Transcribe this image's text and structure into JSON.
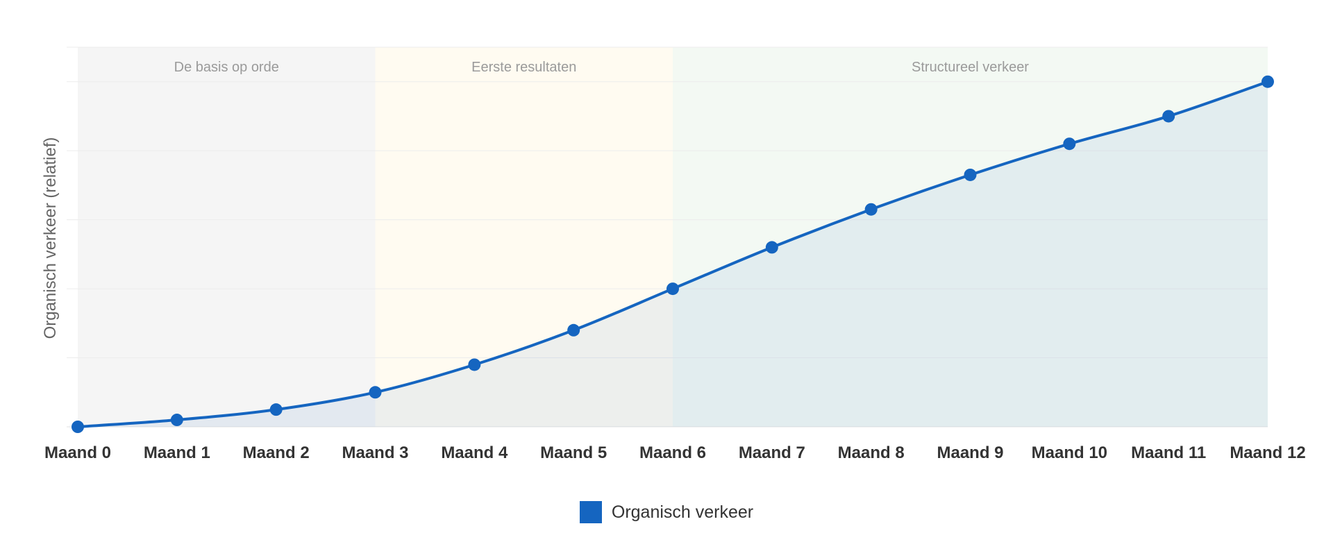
{
  "chart_data": {
    "type": "area",
    "title": "",
    "xlabel": "",
    "ylabel": "Organisch verkeer (relatief)",
    "categories": [
      "Maand 0",
      "Maand 1",
      "Maand 2",
      "Maand 3",
      "Maand 4",
      "Maand 5",
      "Maand 6",
      "Maand 7",
      "Maand 8",
      "Maand 9",
      "Maand 10",
      "Maand 11",
      "Maand 12"
    ],
    "series": [
      {
        "name": "Organisch verkeer",
        "color": "#1565c0",
        "values": [
          0,
          2,
          5,
          10,
          18,
          28,
          40,
          52,
          63,
          73,
          82,
          90,
          100
        ]
      }
    ],
    "ylim": [
      0,
      110
    ],
    "y_ticks_visible": false,
    "grid": true,
    "legend": "bottom-center",
    "plot_bands": [
      {
        "from": 0,
        "to": 3,
        "label": "De basis op orde",
        "color": "#f5f5f5"
      },
      {
        "from": 3,
        "to": 6,
        "label": "Eerste resultaten",
        "color": "#fffbf1"
      },
      {
        "from": 6,
        "to": 12,
        "label": "Structureel verkeer",
        "color": "#f3f9f3"
      }
    ]
  }
}
